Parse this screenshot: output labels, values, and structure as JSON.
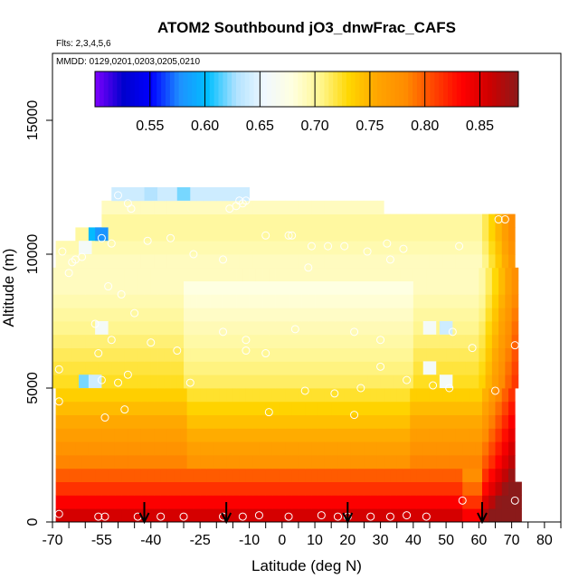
{
  "chart_data": {
    "type": "heatmap",
    "title": "ATOM2 Southbound jO3_dnwFrac_CAFS",
    "flights_label": "Flts: 2,3,4,5,6",
    "dates_label": "MMDD: 0129,0201,0203,0205,0210",
    "xlabel": "Latitude (deg N)",
    "ylabel": "Altitude (m)",
    "xlim": [
      -70,
      85
    ],
    "ylim": [
      0,
      17500
    ],
    "xticks": [
      -70,
      -55,
      -40,
      -25,
      -10,
      0,
      10,
      20,
      30,
      40,
      50,
      60,
      70,
      80
    ],
    "xtick_labels": [
      "-70",
      "-55",
      "-40",
      "-25",
      "-10",
      "0",
      "10",
      "20",
      "30",
      "40",
      "50",
      "60",
      "70",
      "80"
    ],
    "xminor_step": 5,
    "yticks": [
      0,
      5000,
      10000,
      15000
    ],
    "ytick_labels": [
      "0",
      "5000",
      "10000",
      "15000"
    ],
    "colorbar": {
      "range": [
        0.5,
        0.885
      ],
      "ticks": [
        0.55,
        0.6,
        0.65,
        0.7,
        0.75,
        0.8,
        0.85
      ],
      "tick_labels": [
        "0.55",
        "0.60",
        "0.65",
        "0.70",
        "0.75",
        "0.80",
        "0.85"
      ],
      "colors": [
        "#7f00ff",
        "#0000cd",
        "#0000ff",
        "#1e90ff",
        "#00bfff",
        "#b0e2ff",
        "#f0f8ff",
        "#ffffe0",
        "#fff68f",
        "#ffd700",
        "#ffa500",
        "#ff8c00",
        "#ff4500",
        "#ff0000",
        "#cd0000",
        "#8b1a1a"
      ]
    },
    "lat_bin_width": 2,
    "alt_bin_height": 500,
    "altitude_profiles": [
      {
        "alt": 250,
        "lat_range": [
          -69,
          72
        ],
        "base": 0.855
      },
      {
        "alt": 750,
        "lat_range": [
          -69,
          72
        ],
        "base": 0.835
      },
      {
        "alt": 1250,
        "lat_range": [
          -69,
          72
        ],
        "base": 0.815
      },
      {
        "alt": 1750,
        "lat_range": [
          -69,
          71
        ],
        "base": 0.8
      },
      {
        "alt": 2250,
        "lat_range": [
          -69,
          71
        ],
        "base": 0.785
      },
      {
        "alt": 2750,
        "lat_range": [
          -69,
          71
        ],
        "base": 0.775
      },
      {
        "alt": 3250,
        "lat_range": [
          -69,
          71
        ],
        "base": 0.765
      },
      {
        "alt": 3750,
        "lat_range": [
          -69,
          71
        ],
        "base": 0.755
      },
      {
        "alt": 4250,
        "lat_range": [
          -69,
          71
        ],
        "base": 0.745
      },
      {
        "alt": 4750,
        "lat_range": [
          -69,
          71
        ],
        "base": 0.735
      },
      {
        "alt": 5250,
        "lat_range": [
          -70,
          71
        ],
        "base": 0.725
      },
      {
        "alt": 5750,
        "lat_range": [
          -70,
          71
        ],
        "base": 0.72
      },
      {
        "alt": 6250,
        "lat_range": [
          -70,
          71
        ],
        "base": 0.715
      },
      {
        "alt": 6750,
        "lat_range": [
          -70,
          71
        ],
        "base": 0.71
      },
      {
        "alt": 7250,
        "lat_range": [
          -70,
          71
        ],
        "base": 0.705
      },
      {
        "alt": 7750,
        "lat_range": [
          -70,
          71
        ],
        "base": 0.7
      },
      {
        "alt": 8250,
        "lat_range": [
          -70,
          71
        ],
        "base": 0.695
      },
      {
        "alt": 8750,
        "lat_range": [
          -70,
          71
        ],
        "base": 0.69
      },
      {
        "alt": 9250,
        "lat_range": [
          -70,
          71
        ],
        "base": 0.69
      },
      {
        "alt": 9750,
        "lat_range": [
          -69,
          71
        ],
        "base": 0.69
      },
      {
        "alt": 10250,
        "lat_range": [
          -69,
          71
        ],
        "base": 0.695
      },
      {
        "alt": 10750,
        "lat_range": [
          -63,
          71
        ],
        "base": 0.7
      },
      {
        "alt": 11250,
        "lat_range": [
          -55,
          71
        ],
        "base": 0.7
      },
      {
        "alt": 11750,
        "lat_range": [
          -55,
          30
        ],
        "base": 0.69
      },
      {
        "alt": 12250,
        "lat_range": [
          -52,
          -10
        ],
        "base": 0.64
      }
    ],
    "anomalies": [
      {
        "lat": -60,
        "alt": 5250,
        "value": 0.62
      },
      {
        "lat": -57,
        "alt": 5250,
        "value": 0.64
      },
      {
        "lat": -57,
        "alt": 10750,
        "value": 0.6
      },
      {
        "lat": -55,
        "alt": 10750,
        "value": 0.58
      },
      {
        "lat": -60,
        "alt": 10250,
        "value": 0.66
      },
      {
        "lat": 45,
        "alt": 7250,
        "value": 0.66
      },
      {
        "lat": 50,
        "alt": 7250,
        "value": 0.64
      },
      {
        "lat": 45,
        "alt": 5750,
        "value": 0.66
      },
      {
        "lat": 50,
        "alt": 5250,
        "value": 0.66
      },
      {
        "lat": -55,
        "alt": 7250,
        "value": 0.66
      },
      {
        "lat": -30,
        "alt": 12250,
        "value": 0.62
      },
      {
        "lat": -40,
        "alt": 12250,
        "value": 0.63
      }
    ],
    "sample_points": [
      {
        "lat": -68,
        "alt": 300
      },
      {
        "lat": -56,
        "alt": 200
      },
      {
        "lat": -54,
        "alt": 200
      },
      {
        "lat": -44,
        "alt": 200
      },
      {
        "lat": -37,
        "alt": 200
      },
      {
        "lat": -30,
        "alt": 200
      },
      {
        "lat": -18,
        "alt": 200
      },
      {
        "lat": -12,
        "alt": 200
      },
      {
        "lat": -7,
        "alt": 250
      },
      {
        "lat": 2,
        "alt": 200
      },
      {
        "lat": 12,
        "alt": 250
      },
      {
        "lat": 17,
        "alt": 200
      },
      {
        "lat": 20,
        "alt": 200
      },
      {
        "lat": 27,
        "alt": 200
      },
      {
        "lat": 33,
        "alt": 200
      },
      {
        "lat": 38,
        "alt": 250
      },
      {
        "lat": 44,
        "alt": 200
      },
      {
        "lat": 55,
        "alt": 800
      },
      {
        "lat": 71,
        "alt": 800
      },
      {
        "lat": -50,
        "alt": 12200
      },
      {
        "lat": -47,
        "alt": 11900
      },
      {
        "lat": -46,
        "alt": 11700
      },
      {
        "lat": -16,
        "alt": 11700
      },
      {
        "lat": -14,
        "alt": 11800
      },
      {
        "lat": -13,
        "alt": 12000
      },
      {
        "lat": -11,
        "alt": 12000
      },
      {
        "lat": -12,
        "alt": 11900
      },
      {
        "lat": -55,
        "alt": 10600
      },
      {
        "lat": -52,
        "alt": 10400
      },
      {
        "lat": -41,
        "alt": 10500
      },
      {
        "lat": -34,
        "alt": 10600
      },
      {
        "lat": -5,
        "alt": 10700
      },
      {
        "lat": 2,
        "alt": 10700
      },
      {
        "lat": 3,
        "alt": 10700
      },
      {
        "lat": 9,
        "alt": 10300
      },
      {
        "lat": 14,
        "alt": 10300
      },
      {
        "lat": 19,
        "alt": 10300
      },
      {
        "lat": 26,
        "alt": 10100
      },
      {
        "lat": 32,
        "alt": 10400
      },
      {
        "lat": 37,
        "alt": 10200
      },
      {
        "lat": 54,
        "alt": 10300
      },
      {
        "lat": 66,
        "alt": 11300
      },
      {
        "lat": 68,
        "alt": 11300
      },
      {
        "lat": -67,
        "alt": 10100
      },
      {
        "lat": -64,
        "alt": 9700
      },
      {
        "lat": -63,
        "alt": 9800
      },
      {
        "lat": -61,
        "alt": 9900
      },
      {
        "lat": -27,
        "alt": 10000
      },
      {
        "lat": -18,
        "alt": 9800
      },
      {
        "lat": 8,
        "alt": 9500
      },
      {
        "lat": 33,
        "alt": 9800
      },
      {
        "lat": -65,
        "alt": 9300
      },
      {
        "lat": -53,
        "alt": 8800
      },
      {
        "lat": -49,
        "alt": 8500
      },
      {
        "lat": -45,
        "alt": 7800
      },
      {
        "lat": -57,
        "alt": 7400
      },
      {
        "lat": -52,
        "alt": 6800
      },
      {
        "lat": -40,
        "alt": 6700
      },
      {
        "lat": -32,
        "alt": 6400
      },
      {
        "lat": -18,
        "alt": 7100
      },
      {
        "lat": -11,
        "alt": 6800
      },
      {
        "lat": -11,
        "alt": 6400
      },
      {
        "lat": -5,
        "alt": 6300
      },
      {
        "lat": 4,
        "alt": 7200
      },
      {
        "lat": 22,
        "alt": 7100
      },
      {
        "lat": 30,
        "alt": 6800
      },
      {
        "lat": 52,
        "alt": 7100
      },
      {
        "lat": 58,
        "alt": 6500
      },
      {
        "lat": 71,
        "alt": 6600
      },
      {
        "lat": -56,
        "alt": 6300
      },
      {
        "lat": -68,
        "alt": 5700
      },
      {
        "lat": -55,
        "alt": 5300
      },
      {
        "lat": -50,
        "alt": 5200
      },
      {
        "lat": -47,
        "alt": 5500
      },
      {
        "lat": -28,
        "alt": 5200
      },
      {
        "lat": 7,
        "alt": 4900
      },
      {
        "lat": 16,
        "alt": 4800
      },
      {
        "lat": 24,
        "alt": 5000
      },
      {
        "lat": 30,
        "alt": 5800
      },
      {
        "lat": 38,
        "alt": 5300
      },
      {
        "lat": 46,
        "alt": 5100
      },
      {
        "lat": 51,
        "alt": 5000
      },
      {
        "lat": 65,
        "alt": 4900
      },
      {
        "lat": -54,
        "alt": 3900
      },
      {
        "lat": -48,
        "alt": 4200
      },
      {
        "lat": 22,
        "alt": 4000
      },
      {
        "lat": -4,
        "alt": 4100
      },
      {
        "lat": -68,
        "alt": 4500
      }
    ],
    "arrow_lats": [
      -42,
      -17,
      20,
      61
    ]
  }
}
